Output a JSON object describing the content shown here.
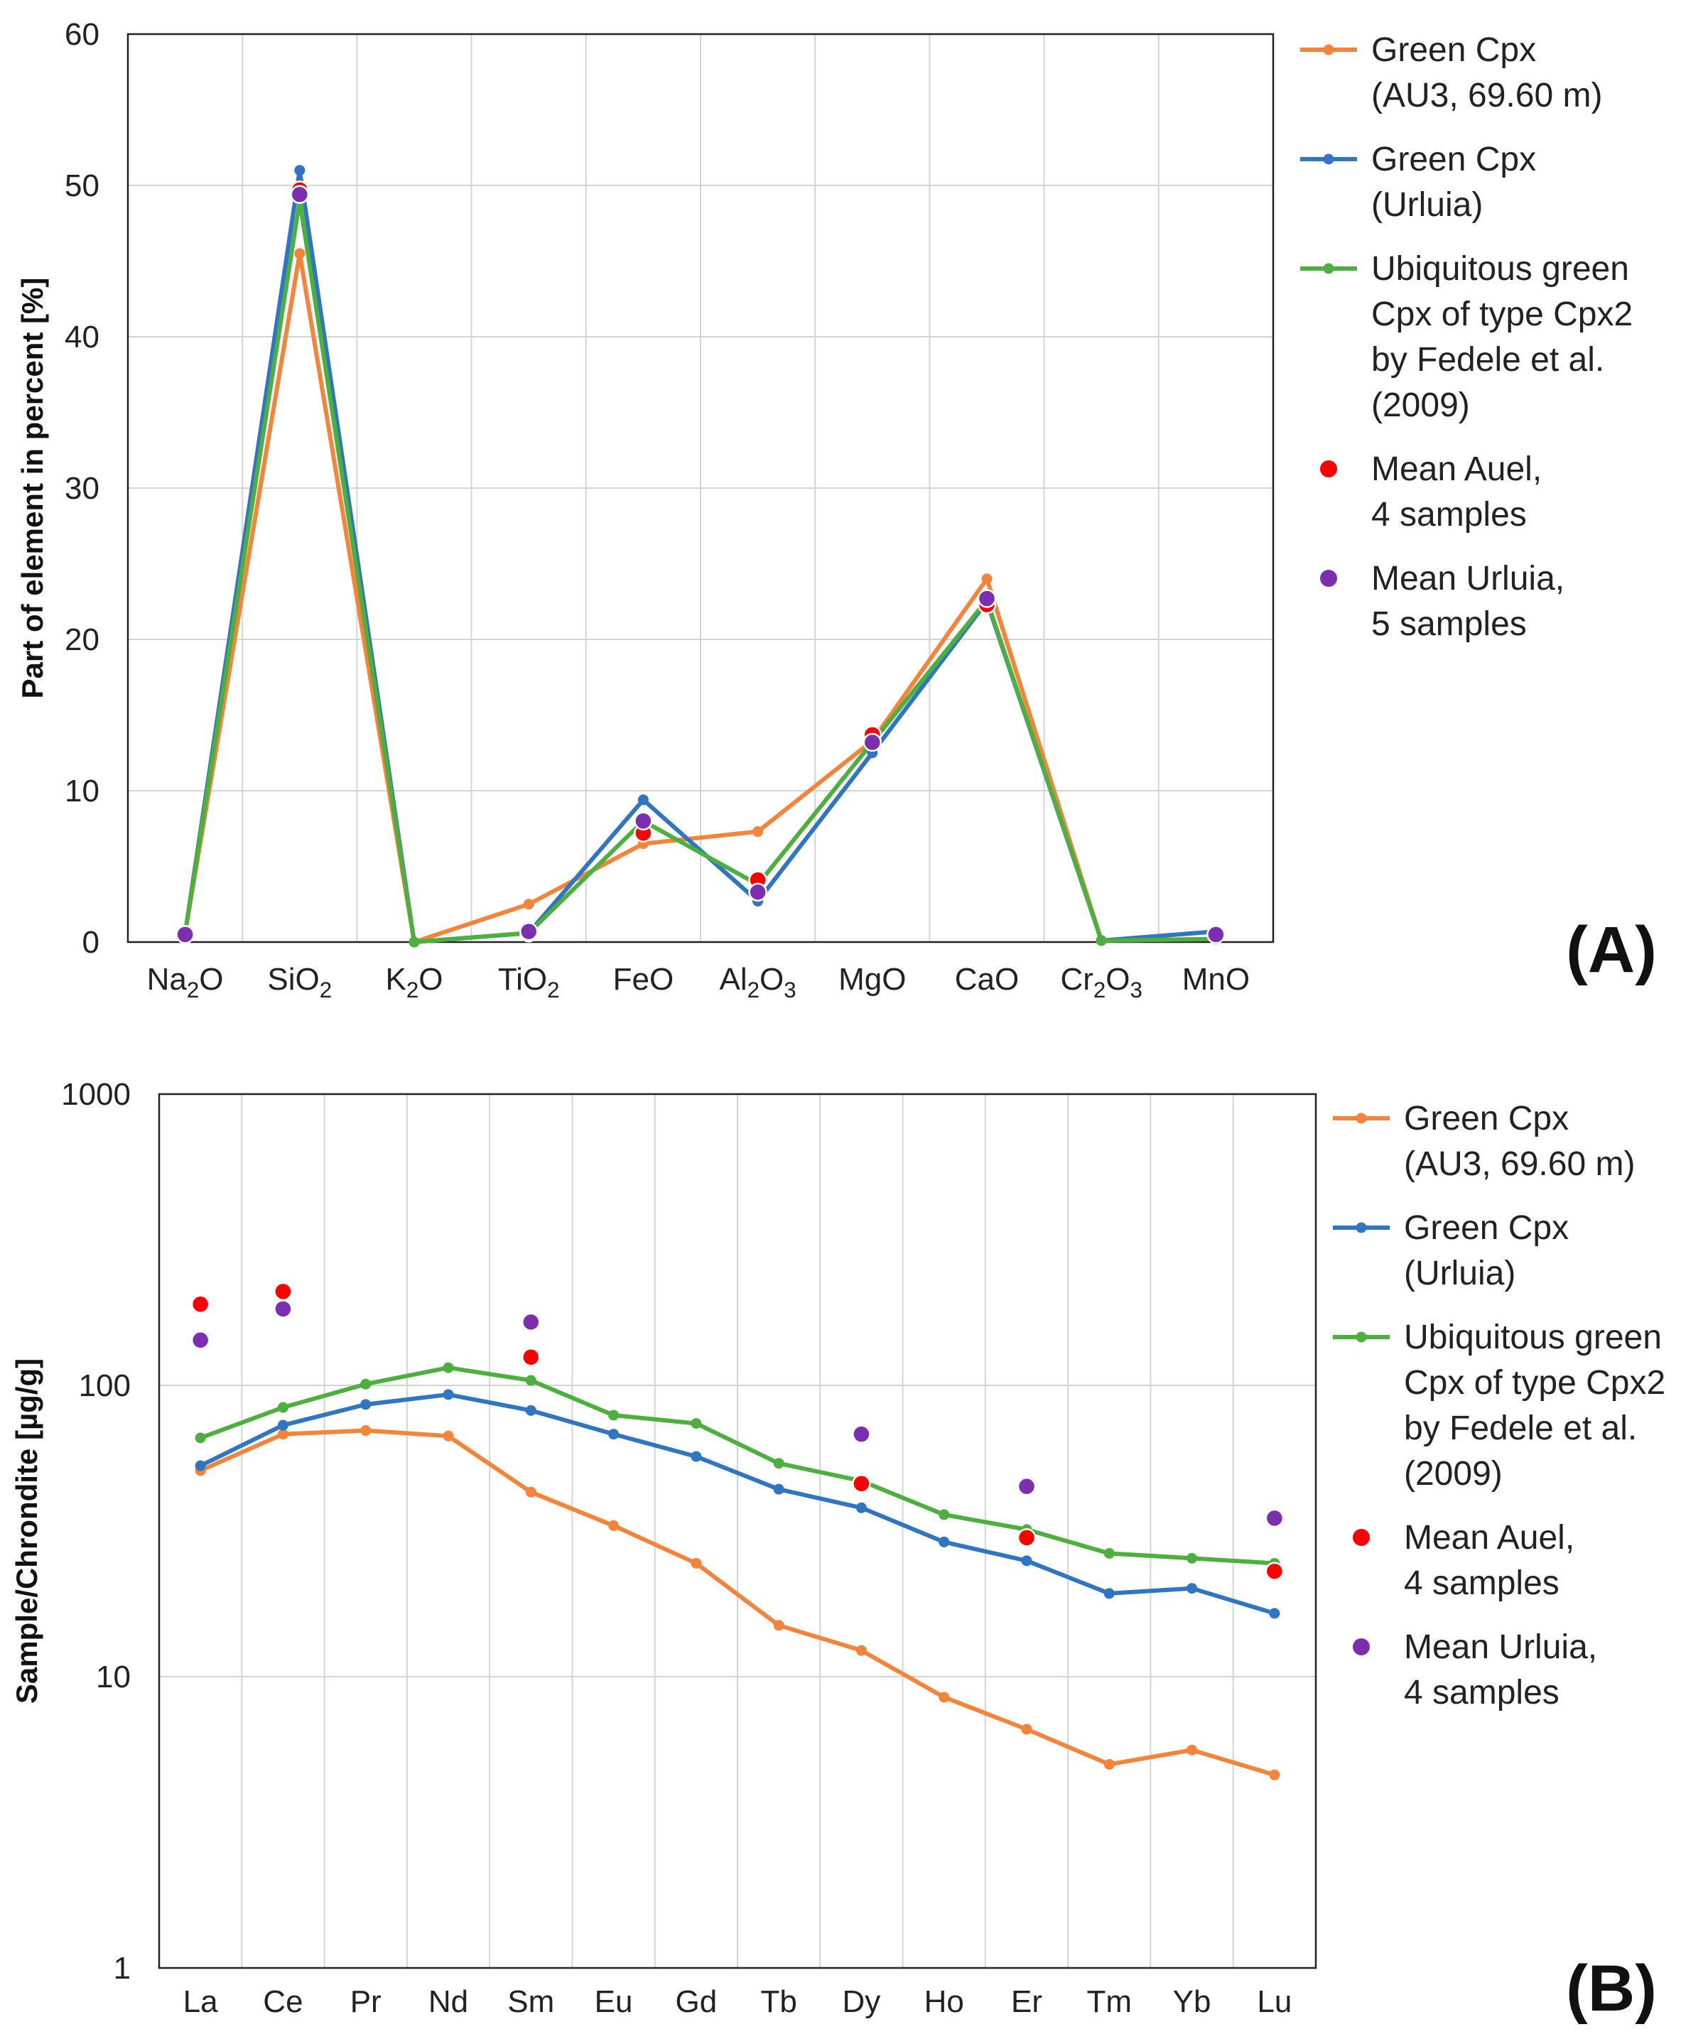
{
  "colors": {
    "auel": "#F5843B",
    "urluia": "#2F75C1",
    "fedele": "#4CAF3E",
    "mean_auel": "#FF0000",
    "mean_urluia": "#7B2FAE"
  },
  "chart_data": [
    {
      "type": "line",
      "panel": "(A)",
      "xlabel": "",
      "ylabel": "Part of element in percent [%]",
      "ylim": [
        0,
        60
      ],
      "yticks": [
        0,
        10,
        20,
        30,
        40,
        50,
        60
      ],
      "grid": true,
      "legend_position": "right",
      "categories": [
        "Na₂O",
        "SiO₂",
        "K₂O",
        "TiO₂",
        "FeO",
        "Al₂O₃",
        "MgO",
        "CaO",
        "Cr₂O₃",
        "MnO"
      ],
      "series": [
        {
          "name": "Green Cpx (AU3, 69.60 m)",
          "kind": "line",
          "color": "#F5843B",
          "legend_lines": [
            "Green Cpx",
            "(AU3, 69.60 m)"
          ],
          "values": [
            0.6,
            45.5,
            0.0,
            2.5,
            6.5,
            7.3,
            13.3,
            24.0,
            0.1,
            0.2
          ]
        },
        {
          "name": "Green Cpx (Urluia)",
          "kind": "line",
          "color": "#2F75C1",
          "legend_lines": [
            "Green Cpx",
            "(Urluia)"
          ],
          "values": [
            0.6,
            51.0,
            0.0,
            0.6,
            9.4,
            2.7,
            12.5,
            22.5,
            0.1,
            0.7
          ]
        },
        {
          "name": "Ubiquitous green Cpx of type Cpx2 by Fedele et al. (2009)",
          "kind": "line",
          "color": "#4CAF3E",
          "legend_lines": [
            "Ubiquitous green",
            "Cpx of type Cpx2",
            "by Fedele et al.",
            "(2009)"
          ],
          "values": [
            0.6,
            49.0,
            0.0,
            0.6,
            8.0,
            3.8,
            13.2,
            22.6,
            0.1,
            0.2
          ]
        },
        {
          "name": "Mean Auel, 4 samples",
          "kind": "points",
          "color": "#FF0000",
          "legend_lines": [
            "Mean Auel,",
            "4 samples"
          ],
          "values": [
            0.5,
            49.7,
            null,
            0.6,
            7.2,
            4.1,
            13.7,
            22.3,
            null,
            0.5
          ]
        },
        {
          "name": "Mean Urluia, 5 samples",
          "kind": "points",
          "color": "#7B2FAE",
          "legend_lines": [
            "Mean Urluia,",
            "5 samples"
          ],
          "values": [
            0.5,
            49.4,
            null,
            0.7,
            8.0,
            3.3,
            13.2,
            22.7,
            null,
            0.5
          ]
        }
      ]
    },
    {
      "type": "line",
      "panel": "(B)",
      "xlabel": "",
      "ylabel": "Sample/Chrondite [µg/g]",
      "yscale": "log",
      "ylim": [
        1,
        1000
      ],
      "yticks": [
        1,
        10,
        100,
        1000
      ],
      "grid": true,
      "legend_position": "right",
      "categories": [
        "La",
        "Ce",
        "Pr",
        "Nd",
        "Sm",
        "Eu",
        "Gd",
        "Tb",
        "Dy",
        "Ho",
        "Er",
        "Tm",
        "Yb",
        "Lu"
      ],
      "series": [
        {
          "name": "Green Cpx (AU3, 69.60 m)",
          "kind": "line",
          "color": "#F5843B",
          "legend_lines": [
            "Green Cpx",
            "(AU3, 69.60 m)"
          ],
          "values": [
            51,
            68,
            70,
            67,
            43,
            33,
            24.5,
            15,
            12.3,
            8.5,
            6.6,
            5.0,
            5.6,
            4.6
          ]
        },
        {
          "name": "Green Cpx (Urluia)",
          "kind": "line",
          "color": "#2F75C1",
          "legend_lines": [
            "Green Cpx",
            "(Urluia)"
          ],
          "values": [
            53,
            73,
            86,
            93,
            82,
            68,
            57,
            44,
            38,
            29,
            25,
            19.3,
            20.1,
            16.5
          ]
        },
        {
          "name": "Ubiquitous green Cpx of type Cpx2 by Fedele et al. (2009)",
          "kind": "line",
          "color": "#4CAF3E",
          "legend_lines": [
            "Ubiquitous green",
            "Cpx of type Cpx2",
            "by Fedele et al.",
            "(2009)"
          ],
          "values": [
            66,
            84,
            101,
            115,
            104,
            79,
            74,
            54,
            47,
            36,
            32,
            26.5,
            25.5,
            24.5
          ]
        },
        {
          "name": "Mean Auel, 4 samples",
          "kind": "points",
          "color": "#FF0000",
          "legend_lines": [
            "Mean Auel,",
            "4 samples"
          ],
          "values": [
            190,
            210,
            null,
            null,
            125,
            null,
            null,
            null,
            46,
            null,
            30,
            null,
            null,
            23
          ]
        },
        {
          "name": "Mean Urluia, 4 samples",
          "kind": "points",
          "color": "#7B2FAE",
          "legend_lines": [
            "Mean Urluia,",
            "4 samples"
          ],
          "values": [
            143,
            183,
            null,
            null,
            165,
            null,
            null,
            null,
            68,
            null,
            45,
            null,
            null,
            35
          ]
        }
      ]
    }
  ]
}
